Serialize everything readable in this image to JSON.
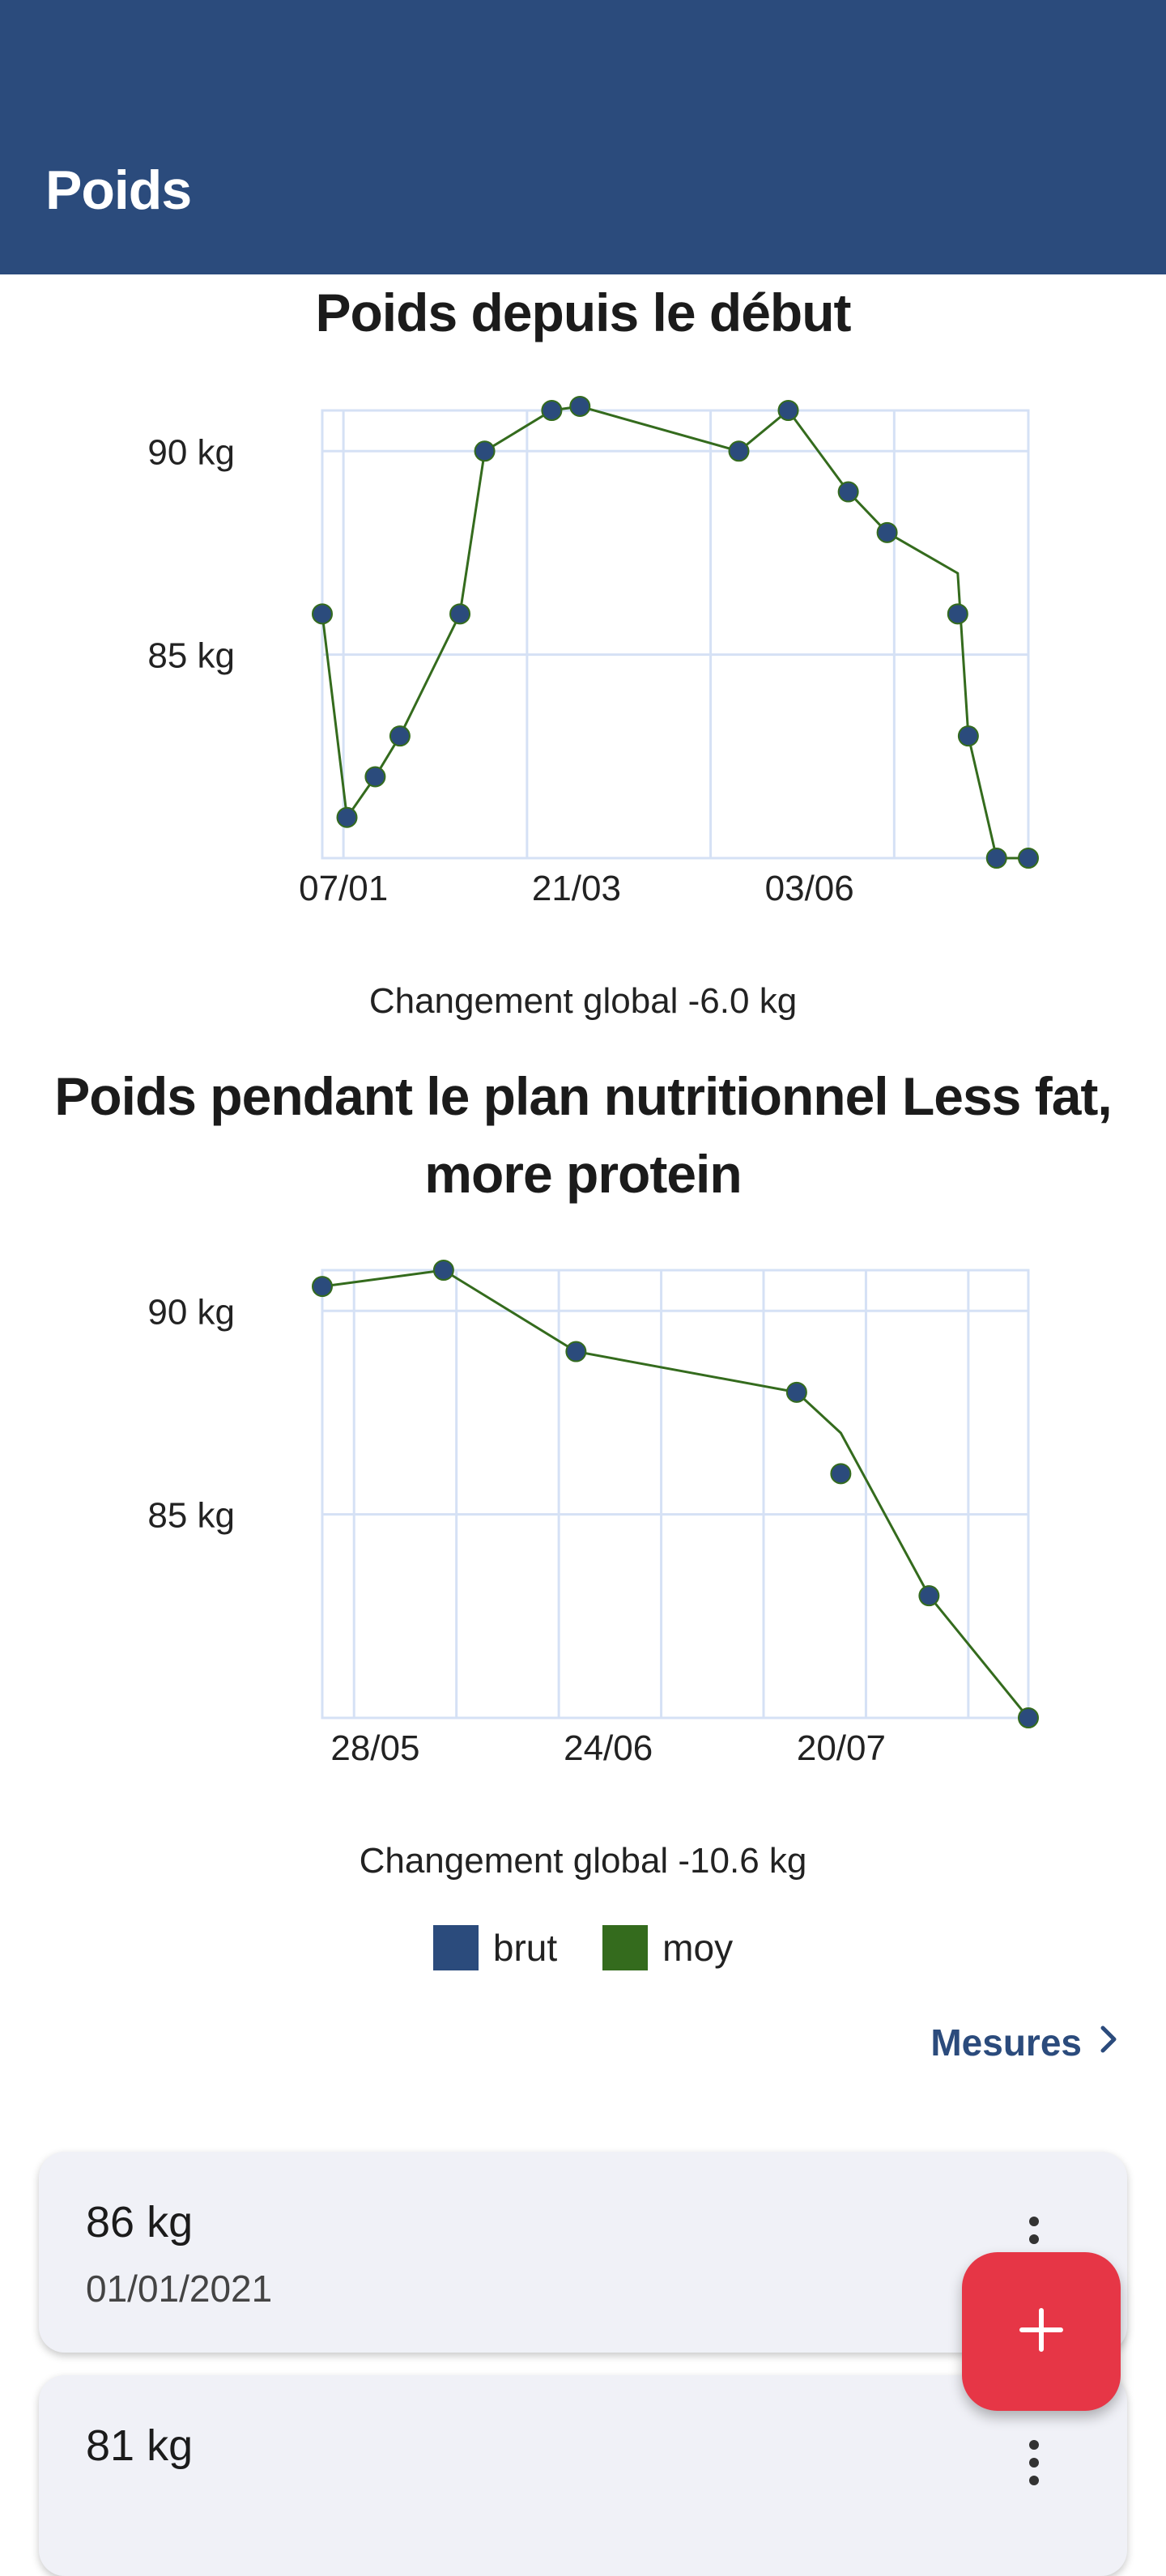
{
  "appbar": {
    "title": "Poids"
  },
  "legend": [
    {
      "label": "brut",
      "color": "#2b4b7c"
    },
    {
      "label": "moy",
      "color": "#346b1d"
    }
  ],
  "chart_data": [
    {
      "type": "scatter",
      "title": "Poids depuis le début",
      "x_tick_labels": [
        "07/01",
        "21/03",
        "03/06"
      ],
      "y_tick_labels": [
        "90 kg",
        "85 kg"
      ],
      "ylim": [
        80,
        91
      ],
      "grid": true,
      "series": [
        {
          "name": "brut",
          "color": "#2b4b7c",
          "x": [
            "01/01",
            "08/01",
            "16/01",
            "23/01",
            "09/02",
            "16/02",
            "07/03",
            "15/03",
            "29/04",
            "13/05",
            "30/05",
            "10/06",
            "30/06",
            "03/07",
            "11/07",
            "20/07"
          ],
          "y": [
            86,
            81,
            82,
            83,
            86,
            90,
            91,
            91.1,
            90,
            91,
            89,
            88,
            86,
            83,
            80,
            80
          ]
        },
        {
          "name": "moy",
          "color": "#346b1d",
          "x": [
            "01/01",
            "08/01",
            "16/01",
            "23/01",
            "09/02",
            "16/02",
            "07/03",
            "15/03",
            "29/04",
            "13/05",
            "30/05",
            "10/06",
            "30/06",
            "03/07",
            "11/07",
            "20/07"
          ],
          "y": [
            86,
            81,
            82,
            83,
            86,
            90,
            91,
            91.1,
            90,
            91,
            89,
            88,
            87,
            83,
            80,
            80
          ]
        }
      ],
      "footer": "Changement global -6.0 kg"
    },
    {
      "type": "scatter",
      "title": "Poids pendant le plan nutritionnel Less fat, more protein",
      "x_tick_labels": [
        "28/05",
        "24/06",
        "20/07"
      ],
      "y_tick_labels": [
        "90 kg",
        "85 kg"
      ],
      "ylim": [
        80,
        91
      ],
      "grid": true,
      "series": [
        {
          "name": "brut",
          "color": "#2b4b7c",
          "x": [
            "25/05",
            "05/06",
            "17/06",
            "07/07",
            "11/07",
            "19/07",
            "28/07"
          ],
          "y": [
            90.6,
            91,
            89,
            88,
            86,
            83,
            80
          ]
        },
        {
          "name": "moy",
          "color": "#346b1d",
          "x": [
            "25/05",
            "05/06",
            "17/06",
            "07/07",
            "11/07",
            "19/07",
            "28/07"
          ],
          "y": [
            90.6,
            91,
            89,
            88,
            87,
            83,
            80
          ]
        }
      ],
      "footer": "Changement global -10.6 kg"
    }
  ],
  "mesures": {
    "label": "Mesures"
  },
  "entries": [
    {
      "weight": "86 kg",
      "date": "01/01/2021"
    },
    {
      "weight": "81 kg",
      "date": ""
    }
  ],
  "fab": {
    "icon": "plus-icon"
  }
}
